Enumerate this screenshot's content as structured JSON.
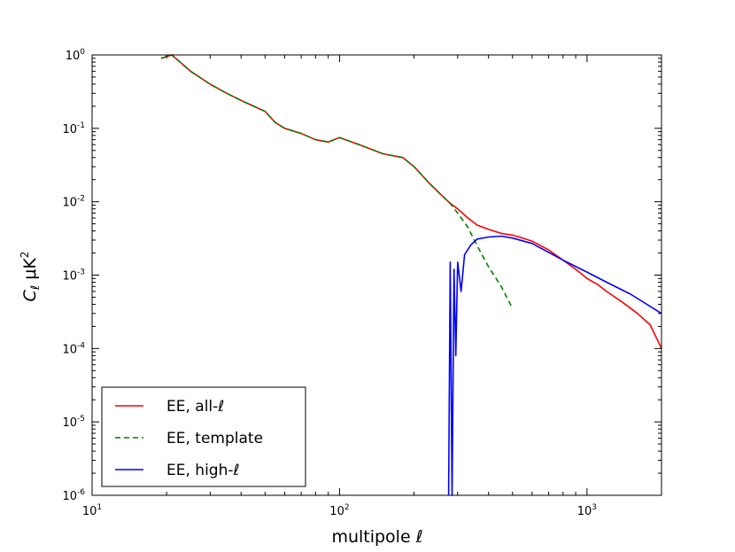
{
  "chart_data": {
    "type": "line",
    "xscale": "log",
    "yscale": "log",
    "xlim": [
      10,
      2000
    ],
    "ylim": [
      1e-06,
      1
    ],
    "xlabel": "multipole ℓ",
    "ylabel": "C_ℓ μK²",
    "x_ticks": [
      {
        "value": 10,
        "base": "10",
        "exp": "1"
      },
      {
        "value": 100,
        "base": "10",
        "exp": "2"
      },
      {
        "value": 1000,
        "base": "10",
        "exp": "3"
      }
    ],
    "y_ticks": [
      {
        "value": 1,
        "base": "10",
        "exp": "0"
      },
      {
        "value": 0.1,
        "base": "10",
        "exp": "-1"
      },
      {
        "value": 0.01,
        "base": "10",
        "exp": "-2"
      },
      {
        "value": 0.001,
        "base": "10",
        "exp": "-3"
      },
      {
        "value": 0.0001,
        "base": "10",
        "exp": "-4"
      },
      {
        "value": 1e-05,
        "base": "10",
        "exp": "-5"
      },
      {
        "value": 1e-06,
        "base": "10",
        "exp": "-6"
      }
    ],
    "legend_position": "lower-left",
    "series": [
      {
        "name": "EE, all-ℓ",
        "color": "#ff0000",
        "style": "solid",
        "x": [
          19,
          21,
          25,
          30,
          35,
          40,
          45,
          50,
          55,
          60,
          70,
          80,
          90,
          100,
          120,
          150,
          180,
          200,
          230,
          260,
          280,
          300,
          330,
          360,
          400,
          450,
          500,
          550,
          600,
          700,
          800,
          900,
          1000,
          1100,
          1200,
          1400,
          1600,
          1800,
          2000
        ],
        "y": [
          0.9,
          1.0,
          0.6,
          0.4,
          0.3,
          0.24,
          0.2,
          0.17,
          0.12,
          0.1,
          0.085,
          0.07,
          0.065,
          0.075,
          0.06,
          0.045,
          0.04,
          0.03,
          0.018,
          0.012,
          0.0095,
          0.008,
          0.006,
          0.0048,
          0.0042,
          0.0037,
          0.0035,
          0.0032,
          0.0029,
          0.0022,
          0.0016,
          0.0012,
          0.0009,
          0.00075,
          0.0006,
          0.00042,
          0.0003,
          0.00021,
          0.0001
        ]
      },
      {
        "name": "EE, template",
        "color": "#008000",
        "style": "dashed",
        "x": [
          19,
          21,
          25,
          30,
          35,
          40,
          45,
          50,
          55,
          60,
          70,
          80,
          90,
          100,
          120,
          150,
          180,
          200,
          230,
          260,
          280,
          300,
          330,
          360,
          400,
          450,
          500
        ],
        "y": [
          0.9,
          1.0,
          0.6,
          0.4,
          0.3,
          0.24,
          0.2,
          0.17,
          0.12,
          0.1,
          0.085,
          0.07,
          0.065,
          0.075,
          0.06,
          0.045,
          0.04,
          0.03,
          0.018,
          0.012,
          0.0095,
          0.007,
          0.0045,
          0.0025,
          0.0013,
          0.0007,
          0.00035
        ]
      },
      {
        "name": "EE, high-ℓ",
        "color": "#0000ff",
        "style": "solid",
        "x": [
          276,
          280,
          285,
          290,
          295,
          300,
          310,
          320,
          340,
          360,
          400,
          450,
          500,
          600,
          800,
          1000,
          1200,
          1500,
          2000
        ],
        "y": [
          1e-06,
          0.0015,
          1e-06,
          0.0012,
          8e-05,
          0.0015,
          0.0006,
          0.0019,
          0.0026,
          0.0031,
          0.0033,
          0.0034,
          0.0032,
          0.0027,
          0.0016,
          0.0011,
          0.0008,
          0.00055,
          0.0003
        ]
      }
    ]
  }
}
